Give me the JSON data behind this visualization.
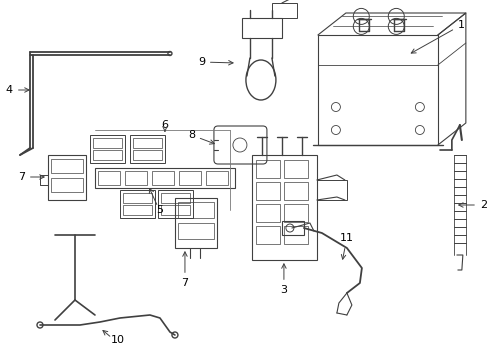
{
  "background_color": "#ffffff",
  "line_color": "#404040",
  "figsize": [
    4.89,
    3.6
  ],
  "dpi": 100,
  "xlim": [
    0,
    489
  ],
  "ylim": [
    0,
    360
  ]
}
